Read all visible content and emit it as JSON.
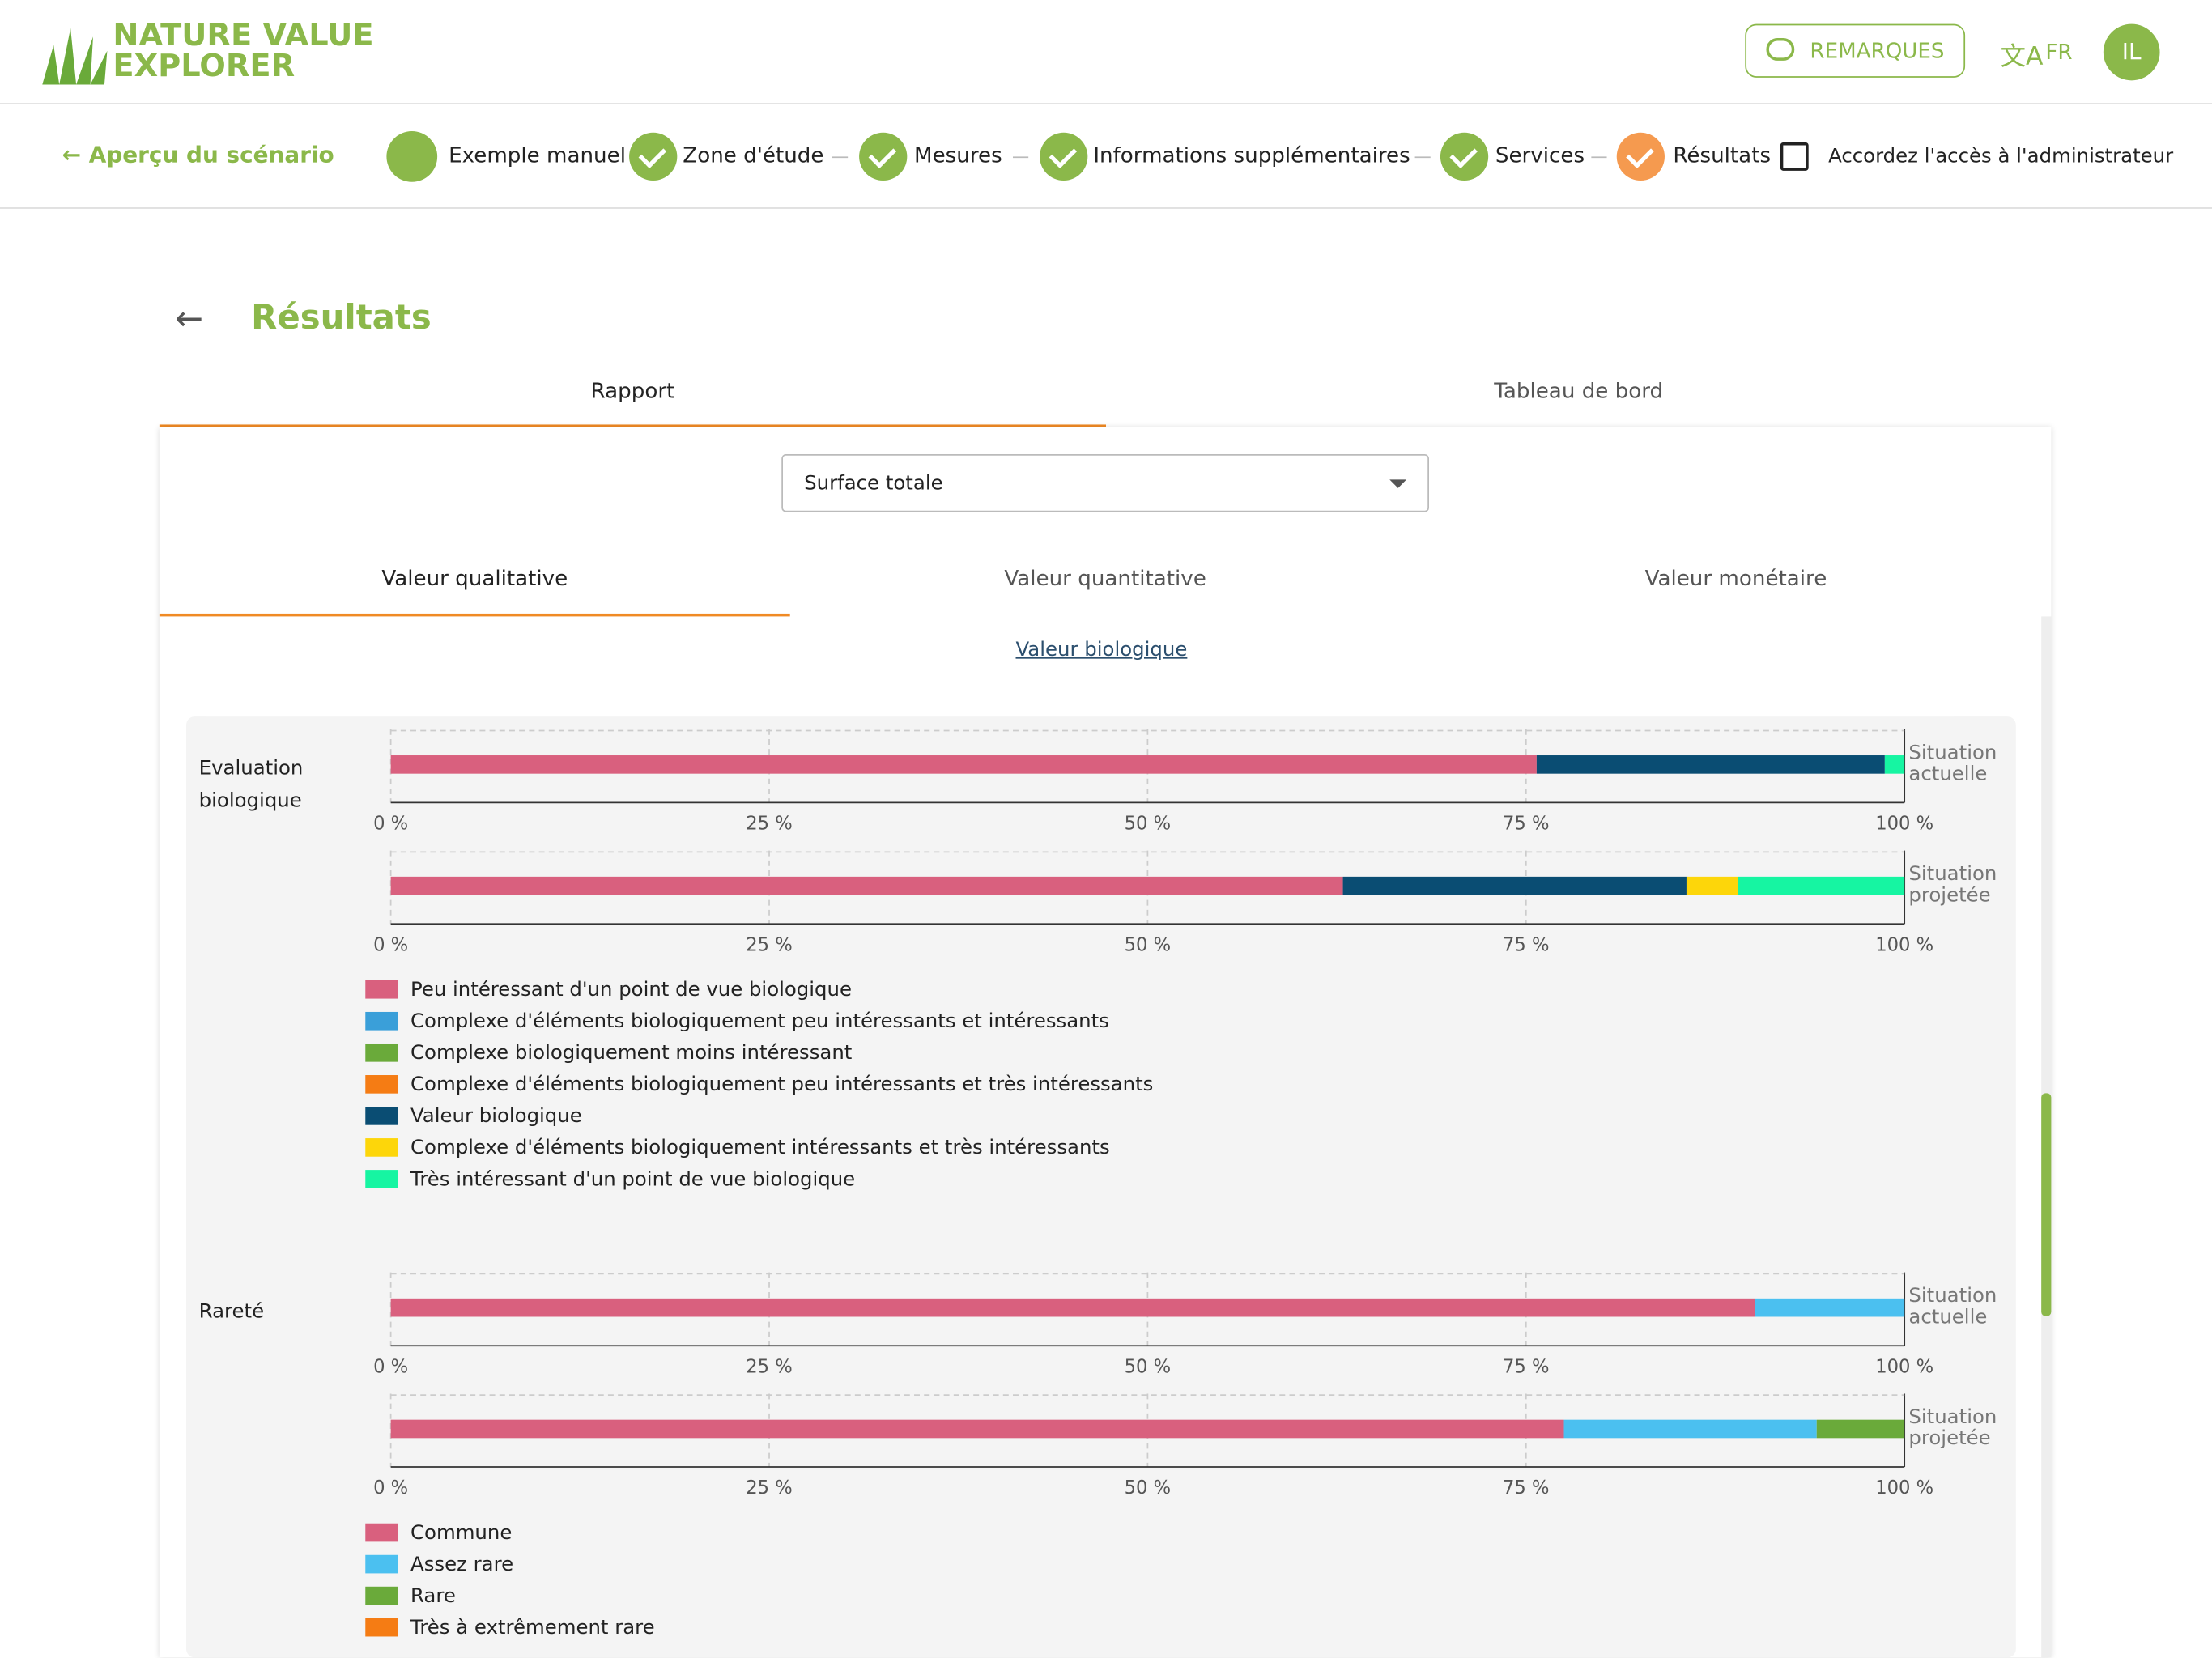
{
  "header": {
    "logo_line1": "NATURE VALUE",
    "logo_line2": "EXPLORER",
    "feedback_button": "REMARQUES",
    "language": "FR",
    "avatar": "IL"
  },
  "steps": {
    "back": "Aperçu du scénario",
    "items": [
      "Exemple manuel",
      "Zone d'étude",
      "Mesures",
      "Informations supplémentaires",
      "Services",
      "Résultats"
    ],
    "admin_access": "Accordez l'accès à l'administrateur"
  },
  "page": {
    "title": "Résultats",
    "tabs": [
      "Rapport",
      "Tableau de bord"
    ],
    "select": "Surface totale",
    "subtabs": [
      "Valeur qualitative",
      "Valeur quantitative",
      "Valeur monétaire"
    ],
    "link": "Valeur biologique"
  },
  "charts": [
    {
      "type": "bar",
      "stacked": true,
      "title": "Evaluation biologique",
      "categories": [
        "Situation actuelle",
        "Situation projetée"
      ],
      "xlim": [
        0,
        100
      ],
      "xticks": [
        {
          "value": 0,
          "label": "0 %"
        },
        {
          "value": 25,
          "label": "25 %"
        },
        {
          "value": 50,
          "label": "50 %"
        },
        {
          "value": 75,
          "label": "75 %"
        },
        {
          "value": 100,
          "label": "100 %"
        }
      ],
      "series": [
        {
          "name": "Peu intéressant d'un point de vue biologique",
          "color": "#d9607e",
          "values": [
            75.7,
            62.9
          ]
        },
        {
          "name": "Complexe d'éléments biologiquement peu intéressants et intéressants",
          "color": "#3a9fd9",
          "values": [
            0,
            0
          ]
        },
        {
          "name": "Complexe biologiquement moins intéressant",
          "color": "#6aaa3a",
          "values": [
            0,
            0
          ]
        },
        {
          "name": "Complexe d'éléments biologiquement peu intéressants et très intéressants",
          "color": "#f57c14",
          "values": [
            0,
            0
          ]
        },
        {
          "name": "Valeur biologique",
          "color": "#0a4d73",
          "values": [
            23.0,
            22.7
          ]
        },
        {
          "name": "Complexe d'éléments biologiquement intéressants et très intéressants",
          "color": "#fdd60a",
          "values": [
            0,
            3.4
          ]
        },
        {
          "name": "Très intéressant d'un point de vue biologique",
          "color": "#16f5a2",
          "values": [
            1.3,
            11.0
          ]
        }
      ]
    },
    {
      "type": "bar",
      "stacked": true,
      "title": "Rareté",
      "categories": [
        "Situation actuelle",
        "Situation projetée"
      ],
      "xlim": [
        0,
        100
      ],
      "xticks": [
        {
          "value": 0,
          "label": "0 %"
        },
        {
          "value": 25,
          "label": "25 %"
        },
        {
          "value": 50,
          "label": "50 %"
        },
        {
          "value": 75,
          "label": "75 %"
        },
        {
          "value": 100,
          "label": "100 %"
        }
      ],
      "series": [
        {
          "name": "Commune",
          "color": "#d9607e",
          "values": [
            90.1,
            77.5
          ]
        },
        {
          "name": "Assez rare",
          "color": "#4bc0f0",
          "values": [
            9.9,
            16.7
          ]
        },
        {
          "name": "Rare",
          "color": "#6aaa3a",
          "values": [
            0,
            5.8
          ]
        },
        {
          "name": "Très à extrêmement rare",
          "color": "#f57c14",
          "values": [
            0,
            0
          ]
        }
      ]
    }
  ]
}
